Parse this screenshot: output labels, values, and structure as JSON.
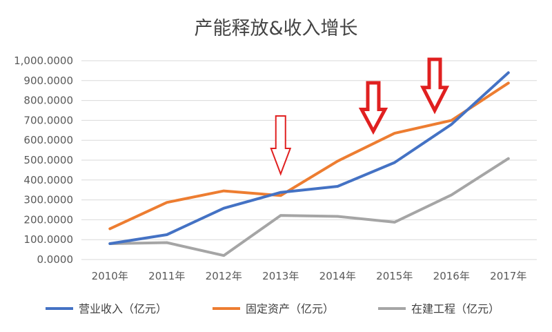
{
  "chart_data": {
    "type": "line",
    "title": "产能释放&收入增长",
    "xlabel": "",
    "ylabel": "",
    "categories": [
      "2010年",
      "2011年",
      "2012年",
      "2013年",
      "2014年",
      "2015年",
      "2016年",
      "2017年"
    ],
    "y_ticks": [
      "0.0000",
      "100.0000",
      "200.0000",
      "300.0000",
      "400.0000",
      "500.0000",
      "600.0000",
      "700.0000",
      "800.0000",
      "900.0000",
      "1,000.0000"
    ],
    "ylim": [
      0,
      1000
    ],
    "grid": true,
    "legend_position": "bottom",
    "series": [
      {
        "name": "营业收入（亿元）",
        "color": "#4472C4",
        "values": [
          80,
          125,
          258,
          338,
          368,
          488,
          680,
          940
        ]
      },
      {
        "name": "固定资产（亿元）",
        "color": "#ED7D31",
        "values": [
          155,
          287,
          345,
          322,
          495,
          635,
          700,
          888
        ]
      },
      {
        "name": "在建工程（亿元）",
        "color": "#A5A5A5",
        "values": [
          80,
          85,
          20,
          222,
          217,
          188,
          325,
          508
        ]
      }
    ],
    "annotations": [
      {
        "type": "down-arrow",
        "category": "2013年",
        "style": "outline",
        "color": "#E02020"
      },
      {
        "type": "down-arrow",
        "category": "2015年",
        "style": "bold",
        "color": "#E02020"
      },
      {
        "type": "down-arrow",
        "category": "2016年",
        "style": "bold",
        "color": "#E02020"
      }
    ]
  }
}
